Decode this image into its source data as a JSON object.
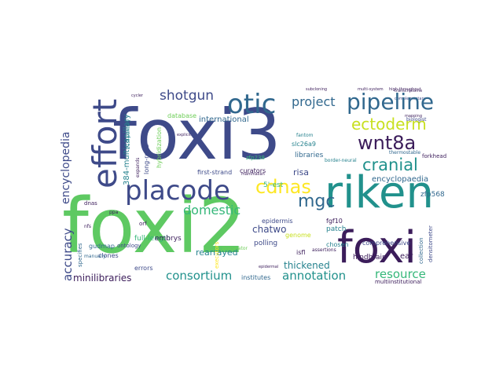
{
  "words": [
    {
      "text": "foxi3",
      "color": "#3e4a89"
    },
    {
      "text": "foxi2",
      "color": "#5ec962"
    },
    {
      "text": "riken",
      "color": "#21918c"
    },
    {
      "text": "foxi",
      "color": "#3b1c5a"
    },
    {
      "text": "effort",
      "color": "#3e4a89"
    },
    {
      "text": "placode",
      "color": "#3e4a89"
    },
    {
      "text": "otic",
      "color": "#31688e"
    },
    {
      "text": "pipeline",
      "color": "#31688e"
    },
    {
      "text": "ectoderm",
      "color": "#c8e020"
    },
    {
      "text": "wnt8a",
      "color": "#3b1c5a"
    },
    {
      "text": "cranial",
      "color": "#21918c"
    },
    {
      "text": "cdnas",
      "color": "#fde725"
    },
    {
      "text": "mgc",
      "color": "#31688e"
    },
    {
      "text": "shotgun",
      "color": "#3e4a89"
    },
    {
      "text": "project",
      "color": "#31688e"
    },
    {
      "text": "domestic",
      "color": "#35b779"
    },
    {
      "text": "consortium",
      "color": "#21918c"
    },
    {
      "text": "annotation",
      "color": "#21918c"
    },
    {
      "text": "resource",
      "color": "#35b779"
    },
    {
      "text": "encyclopedia",
      "color": "#3e4a89"
    },
    {
      "text": "accuracy",
      "color": "#3e4a89"
    },
    {
      "text": "minilibraries",
      "color": "#3b1c5a"
    },
    {
      "text": "international",
      "color": "#31688e"
    },
    {
      "text": "thickened",
      "color": "#26828e"
    },
    {
      "text": "rearrayed",
      "color": "#26828e"
    },
    {
      "text": "chatwo",
      "color": "#3e4a89"
    },
    {
      "text": "risa",
      "color": "#3e4a89"
    },
    {
      "text": "5'-est",
      "color": "#35b779"
    },
    {
      "text": "libraries",
      "color": "#31688e"
    },
    {
      "text": "encyclopaedia",
      "color": "#31688e"
    },
    {
      "text": "zfp568",
      "color": "#31688e"
    },
    {
      "text": "384-multicapillary",
      "color": "#26828e"
    },
    {
      "text": "full-length",
      "color": "#35b779"
    },
    {
      "text": "embrys",
      "color": "#3b1c5a"
    },
    {
      "text": "database",
      "color": "#6ece58"
    },
    {
      "text": "slc26a9",
      "color": "#26828e"
    },
    {
      "text": "zfp238",
      "color": "#35b779"
    },
    {
      "text": "curators",
      "color": "#3b1c5a"
    },
    {
      "text": "first-strand",
      "color": "#3e4a89"
    },
    {
      "text": "long-read",
      "color": "#3e4a89"
    },
    {
      "text": "hybridization",
      "color": "#6ece58"
    },
    {
      "text": "polling",
      "color": "#3e4a89"
    },
    {
      "text": "genome",
      "color": "#c8e020"
    },
    {
      "text": "patch",
      "color": "#26828e"
    },
    {
      "text": "ear",
      "color": "#3b1c5a"
    },
    {
      "text": "errors",
      "color": "#3e4a89"
    },
    {
      "text": "clones",
      "color": "#3e4a89"
    },
    {
      "text": "gudmap",
      "color": "#31688e"
    },
    {
      "text": "hindbrain",
      "color": "#3b1c5a"
    },
    {
      "text": "institutes",
      "color": "#31688e"
    },
    {
      "text": "multiinstitutional",
      "color": "#3b1c5a"
    },
    {
      "text": "epidermis",
      "color": "#3e4a89"
    },
    {
      "text": "fgf10",
      "color": "#3b1c5a"
    },
    {
      "text": "fantom",
      "color": "#26828e"
    },
    {
      "text": "chosen",
      "color": "#26828e"
    },
    {
      "text": "comprehensive",
      "color": "#3e4a89"
    },
    {
      "text": "collection",
      "color": "#31688e"
    },
    {
      "text": "densitometer",
      "color": "#3e4a89"
    },
    {
      "text": "forkhead",
      "color": "#3b1c5a"
    },
    {
      "text": "thermostable",
      "color": "#31688e"
    },
    {
      "text": "mammalian",
      "color": "#3b1c5a"
    },
    {
      "text": "border-neural",
      "color": "#26828e"
    },
    {
      "text": "ontology",
      "color": "#3e4a89"
    },
    {
      "text": "manually",
      "color": "#31688e"
    },
    {
      "text": "specifies",
      "color": "#31688e"
    },
    {
      "text": "dnas",
      "color": "#3b1c5a"
    },
    {
      "text": "executors",
      "color": "#fde725"
    },
    {
      "text": "preparator",
      "color": "#6ece58"
    },
    {
      "text": "assertions",
      "color": "#3b1c5a"
    },
    {
      "text": "biologist",
      "color": "#3e4a89"
    },
    {
      "text": "complementary",
      "color": "#3e4a89"
    },
    {
      "text": "high-throughput",
      "color": "#3b1c5a"
    },
    {
      "text": "transcriptome",
      "color": "#3b1c5a"
    },
    {
      "text": "21st-century",
      "color": "#26828e"
    },
    {
      "text": "isfl",
      "color": "#3b1c5a"
    },
    {
      "text": "orf",
      "color": "#3b1c5a"
    },
    {
      "text": "ppa",
      "color": "#3b1c5a"
    },
    {
      "text": "nfs",
      "color": "#3b1c5a"
    },
    {
      "text": "cycler",
      "color": "#3b1c5a"
    },
    {
      "text": "multi-system",
      "color": "#3b1c5a"
    },
    {
      "text": "explicit",
      "color": "#3b1c5a"
    },
    {
      "text": "expands",
      "color": "#3b1c5a"
    },
    {
      "text": "subcloning",
      "color": "#3b1c5a"
    },
    {
      "text": "mapping",
      "color": "#3b1c5a"
    },
    {
      "text": "epidermal",
      "color": "#3b1c5a"
    }
  ]
}
